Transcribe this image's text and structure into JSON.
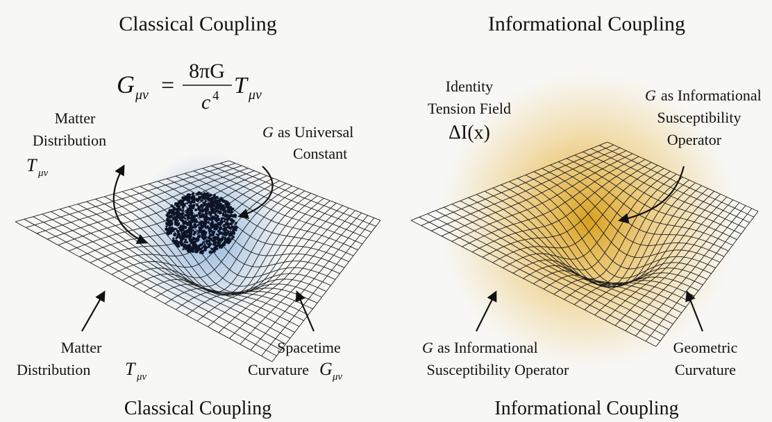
{
  "left_panel": {
    "title": "Classical Coupling",
    "equation": [
      "G",
      "μν",
      "=",
      "8πG",
      "c",
      "4",
      "T",
      "μν"
    ],
    "matter_label_top": [
      "Matter",
      "Distribution",
      "T",
      "μν"
    ],
    "constant_label": [
      "G",
      "as Universal",
      "Constant"
    ],
    "matter_label_bottom": [
      "Matter",
      "Distribution",
      "T",
      "μν"
    ],
    "curvature_label": [
      "Spacetime",
      "Curvature",
      "G",
      "μν"
    ],
    "caption": "Classical Coupling"
  },
  "right_panel": {
    "title": "Informational Coupling",
    "field_label": [
      "Identity",
      "Tension Field",
      "ΔI(x)"
    ],
    "operator_label_top": [
      "G",
      "as Informational",
      "Susceptibility",
      "Operator"
    ],
    "operator_label_bottom": [
      "G",
      "as Informational",
      "Susceptibility Operator"
    ],
    "curvature_label": [
      "Geometric",
      "Curvature"
    ],
    "caption": "Informational Coupling"
  }
}
